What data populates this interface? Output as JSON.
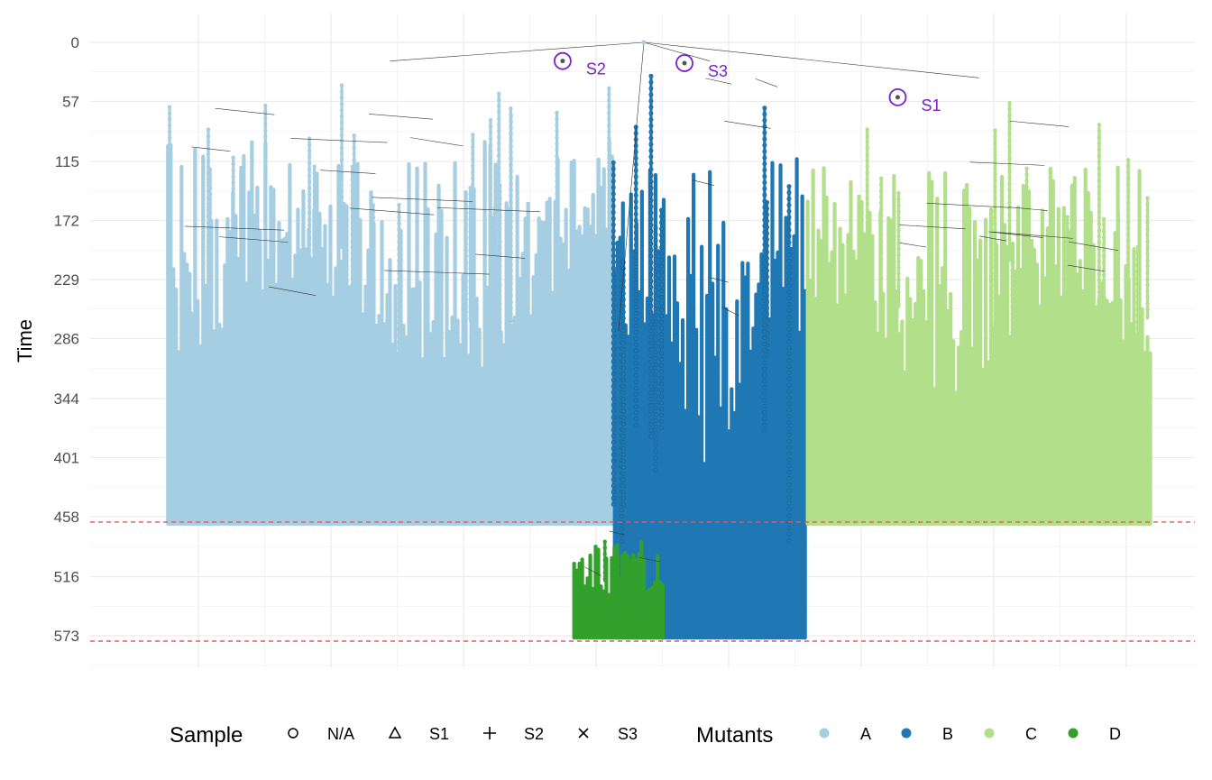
{
  "chart_data": {
    "type": "tree",
    "ylabel": "Time",
    "y_axis_reversed": true,
    "y_ticks": [
      0,
      57,
      115,
      172,
      229,
      286,
      344,
      401,
      458,
      516,
      573
    ],
    "ylim": [
      0,
      600
    ],
    "grid": true,
    "reference_lines": [
      458,
      573
    ],
    "reference_line_color": "#e05a5a",
    "edge_color": "#333333",
    "sample_marker_color": "#7b20c9",
    "samples": [
      {
        "label": "S2",
        "x": 0.42,
        "time": 18
      },
      {
        "label": "S3",
        "x": 0.54,
        "time": 20
      },
      {
        "label": "S1",
        "x": 0.75,
        "time": 53
      }
    ],
    "mutant_series": [
      {
        "name": "A",
        "color": "#a6cee3",
        "x_range": [
          0.03,
          0.47
        ],
        "time_start": 30,
        "time_end": 465
      },
      {
        "name": "B",
        "color": "#1f78b4",
        "x_range": [
          0.47,
          0.66
        ],
        "time_start": 30,
        "time_end": 575
      },
      {
        "name": "C",
        "color": "#b2df8a",
        "x_range": [
          0.66,
          1.0
        ],
        "time_start": 57,
        "time_end": 465
      },
      {
        "name": "D",
        "color": "#33a02c",
        "x_range": [
          0.43,
          0.52
        ],
        "time_start": 465,
        "time_end": 575
      }
    ],
    "legend_position": "bottom",
    "legend": {
      "sample_title": "Sample",
      "sample_items": [
        {
          "symbol": "circle",
          "label": "N/A"
        },
        {
          "symbol": "triangle",
          "label": "S1"
        },
        {
          "symbol": "plus",
          "label": "S2"
        },
        {
          "symbol": "cross",
          "label": "S3"
        }
      ],
      "mutant_title": "Mutants",
      "mutant_items": [
        {
          "label": "A",
          "color": "#a6cee3"
        },
        {
          "label": "B",
          "color": "#1f78b4"
        },
        {
          "label": "C",
          "color": "#b2df8a"
        },
        {
          "label": "D",
          "color": "#33a02c"
        }
      ]
    }
  }
}
